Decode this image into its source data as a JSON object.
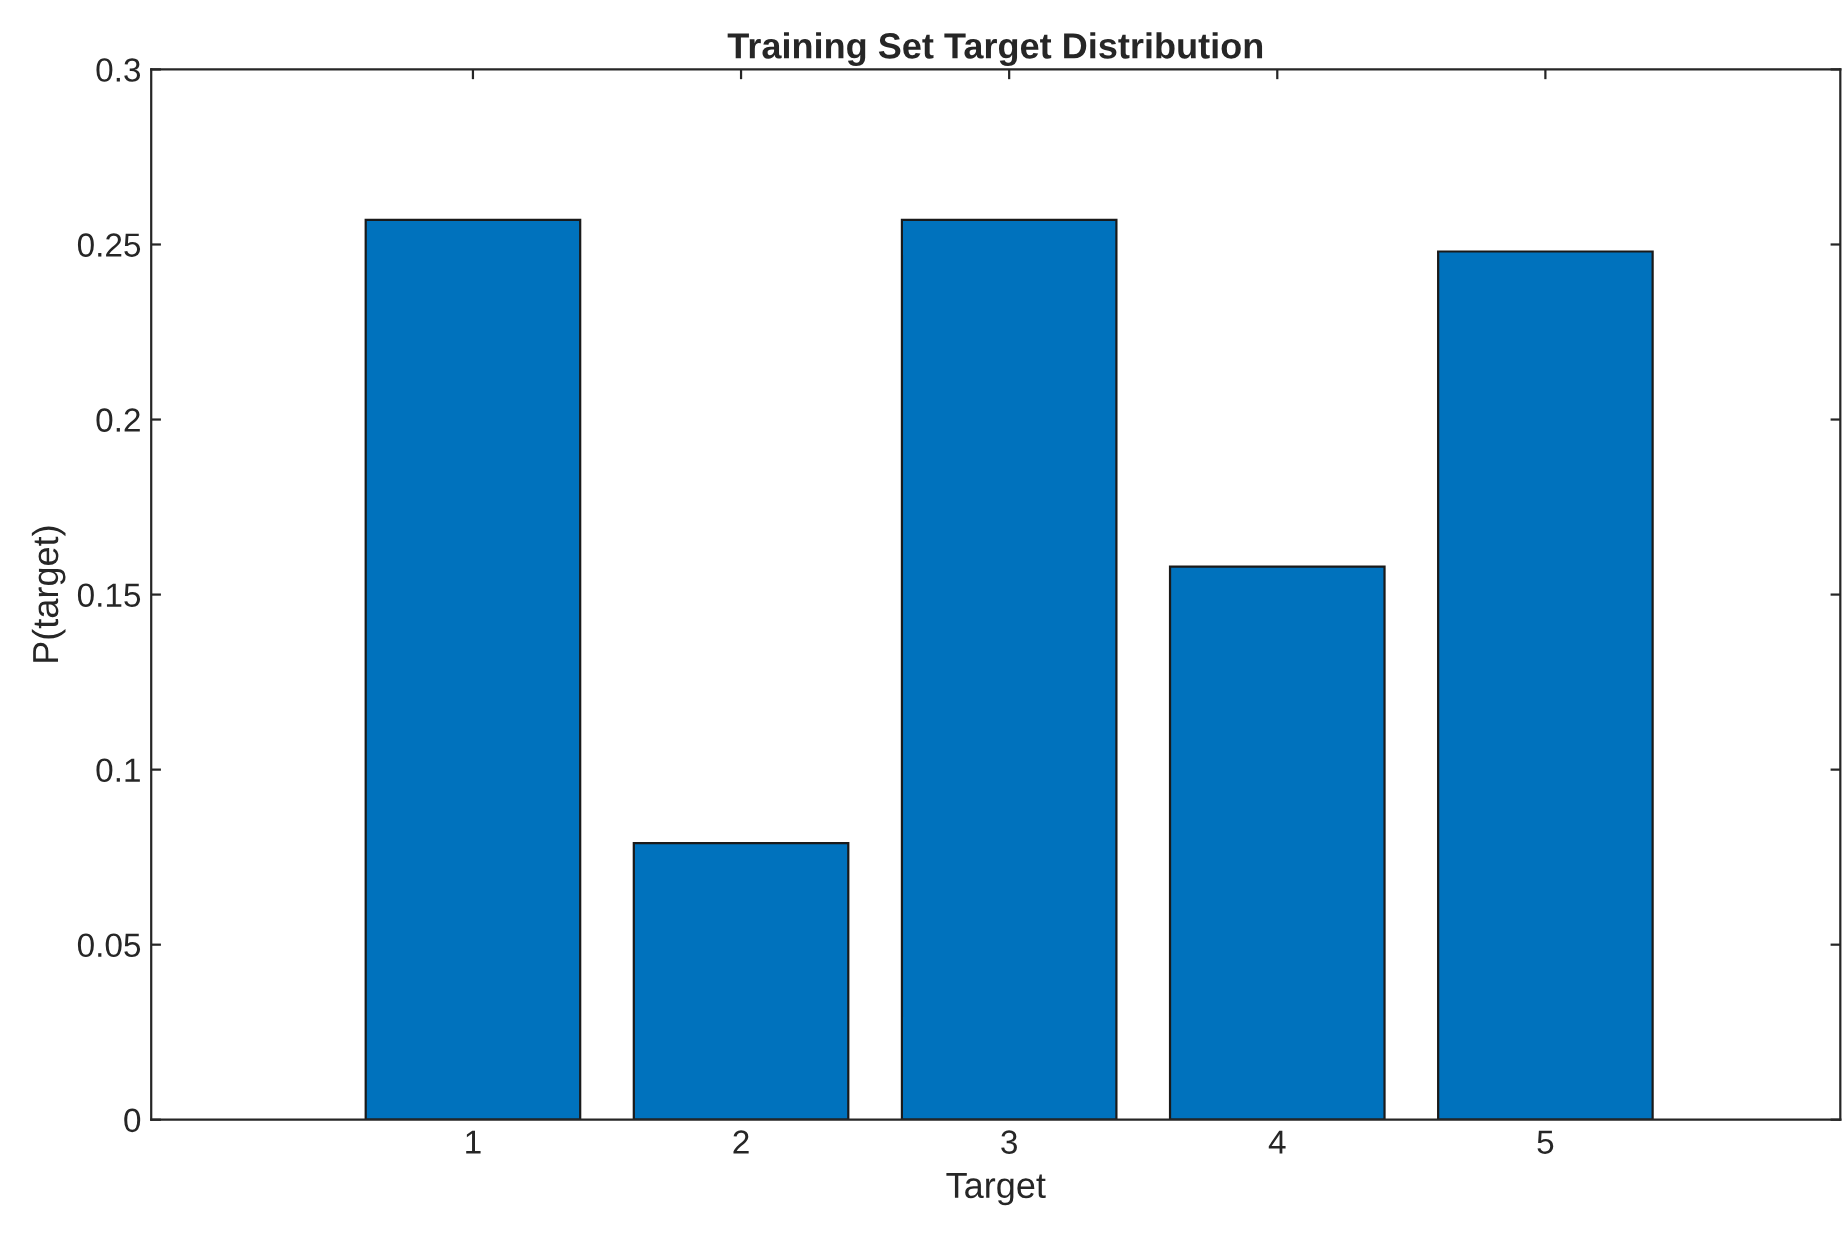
{
  "chart_data": {
    "type": "bar",
    "title": "Training Set Target Distribution",
    "xlabel": "Target",
    "ylabel": "P(target)",
    "x": [
      1,
      2,
      3,
      4,
      5
    ],
    "values": [
      0.257,
      0.079,
      0.257,
      0.158,
      0.248
    ],
    "color": "#0072bd",
    "xlim": [
      -0.2,
      6.1
    ],
    "xticks": [
      1,
      2,
      3,
      4,
      5
    ],
    "ylim": [
      0,
      0.3
    ],
    "yticks": [
      0,
      0.05,
      0.1,
      0.15,
      0.2,
      0.25,
      0.3
    ],
    "grid": false,
    "legend": false
  }
}
